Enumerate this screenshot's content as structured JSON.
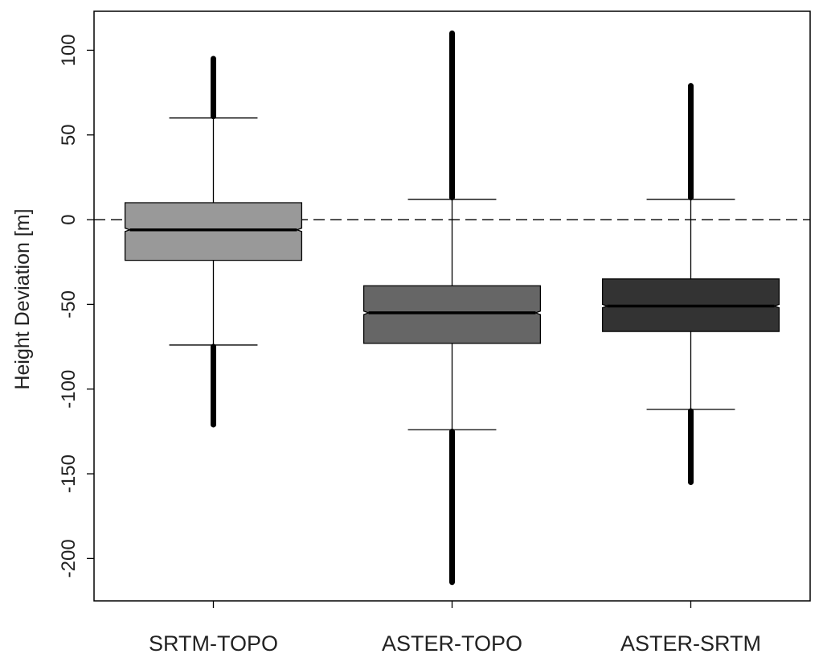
{
  "chart_data": {
    "type": "box",
    "ylabel": "Height Deviation [m]",
    "xlabel": "",
    "ylim": [
      -225,
      123
    ],
    "yticks": [
      100,
      50,
      0,
      -50,
      -100,
      -150,
      -200
    ],
    "reference_line": {
      "y": 0,
      "style": "dashed"
    },
    "grid": false,
    "categories": [
      "SRTM-TOPO",
      "ASTER-TOPO",
      "ASTER-SRTM"
    ],
    "boxes": [
      {
        "name": "SRTM-TOPO",
        "whisker_low": -74,
        "q1": -24,
        "median": -6,
        "q3": 10,
        "whisker_high": 60,
        "notch_low": -7,
        "notch_high": -5,
        "outliers_high": [
          61,
          95
        ],
        "outliers_low": [
          -121,
          -75
        ],
        "color": "#999999"
      },
      {
        "name": "ASTER-TOPO",
        "whisker_low": -124,
        "q1": -73,
        "median": -55,
        "q3": -39,
        "whisker_high": 12,
        "notch_low": -56,
        "notch_high": -54,
        "outliers_high": [
          13,
          110
        ],
        "outliers_low": [
          -214,
          -125
        ],
        "color": "#666666"
      },
      {
        "name": "ASTER-SRTM",
        "whisker_low": -112,
        "q1": -66,
        "median": -51,
        "q3": -35,
        "whisker_high": 12,
        "notch_low": -52,
        "notch_high": -50,
        "outliers_high": [
          13,
          79
        ],
        "outliers_low": [
          -155,
          -113
        ],
        "color": "#333333"
      }
    ]
  }
}
